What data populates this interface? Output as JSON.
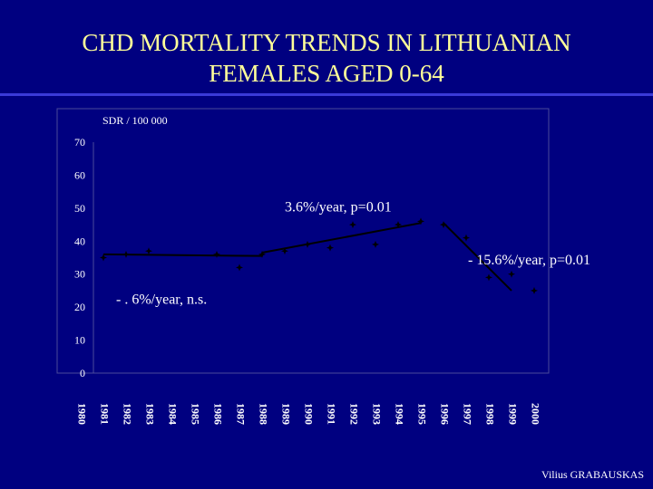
{
  "title": [
    "CHD MORTALITY TRENDS IN LITHUANIAN",
    "FEMALES AGED 0-64"
  ],
  "credit": "Vilius GRABAUSKAS",
  "colors": {
    "background": "#000080",
    "title": "#ffff99",
    "text": "#ffffff",
    "series": "#000000",
    "frame": "#4a4a9a"
  },
  "chart_data": {
    "type": "line",
    "ylabel": "SDR / 100 000",
    "xlabel": "",
    "ylim": [
      0,
      70
    ],
    "yticks": [
      0,
      10,
      20,
      30,
      40,
      50,
      60,
      70
    ],
    "x": [
      "1980",
      "1981",
      "1982",
      "1983",
      "1984",
      "1985",
      "1986",
      "1987",
      "1988",
      "1989",
      "1990",
      "1991",
      "1992",
      "1993",
      "1994",
      "1995",
      "1996",
      "1997",
      "1998",
      "1999",
      "2000"
    ],
    "series": [
      {
        "values": [
          null,
          35,
          36,
          37,
          null,
          null,
          36,
          32,
          36,
          37,
          39,
          38,
          45,
          39,
          45,
          46,
          45,
          41,
          29,
          30,
          25
        ]
      }
    ],
    "trend_lines": [
      {
        "from": [
          "1981",
          36
        ],
        "to": [
          "1988",
          35.5
        ]
      },
      {
        "from": [
          "1988",
          36.5
        ],
        "to": [
          "1995",
          45.5
        ]
      },
      {
        "from": [
          "1996",
          45.5
        ],
        "to": [
          "1999",
          25
        ]
      }
    ],
    "annotations": [
      {
        "text": "3.6%/year, p=0.01",
        "x": "1989",
        "y": 49
      },
      {
        "text": "- 15.6%/year, p=0.01",
        "x": "1997",
        "y": 33
      },
      {
        "text": "- . 6%/year, n.s.",
        "x": "1981",
        "y": 21
      }
    ],
    "grid": false
  }
}
